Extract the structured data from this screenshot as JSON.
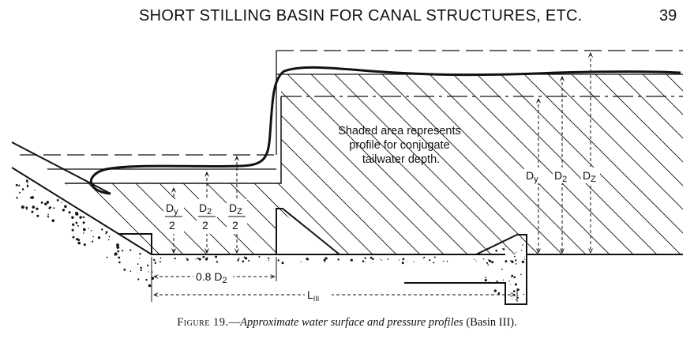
{
  "header": {
    "title": "SHORT STILLING BASIN FOR CANAL STRUCTURES, ETC.",
    "page_number": "39"
  },
  "diagram": {
    "note_lines": [
      "Shaded area represents",
      "profile for conjugate",
      "tailwater depth."
    ],
    "fraction_labels": [
      {
        "top": "D",
        "sub": "y",
        "bottom": "2"
      },
      {
        "top": "D",
        "sub": "2",
        "bottom": "2"
      },
      {
        "top": "D",
        "sub": "Z",
        "bottom": "2"
      }
    ],
    "depth_labels": [
      {
        "main": "D",
        "sub": "y"
      },
      {
        "main": "D",
        "sub": "2"
      },
      {
        "main": "D",
        "sub": "Z"
      }
    ],
    "dim_baffle": {
      "main": "0.8 D",
      "sub": "2"
    },
    "dim_length": {
      "main": "L",
      "sub": "III"
    }
  },
  "caption": {
    "label": "Figure 19.",
    "sep": "—",
    "text": "Approximate water surface and pressure profiles",
    "suffix": "(Basin III)."
  }
}
